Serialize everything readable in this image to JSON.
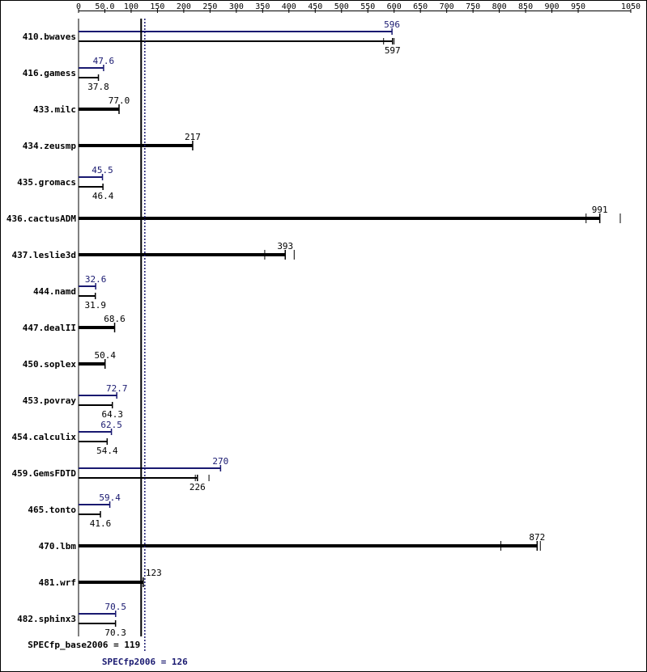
{
  "chart_data": {
    "type": "bar",
    "title": "",
    "xlabel": "",
    "ylabel": "",
    "xlim": [
      0,
      1050
    ],
    "grid": false,
    "ticks": [
      "0",
      "50.0",
      "100",
      "150",
      "200",
      "250",
      "300",
      "350",
      "400",
      "450",
      "500",
      "550",
      "600",
      "650",
      "700",
      "750",
      "800",
      "850",
      "900",
      "950",
      "1050"
    ],
    "tick_values": [
      0,
      50,
      100,
      150,
      200,
      250,
      300,
      350,
      400,
      450,
      500,
      550,
      600,
      650,
      700,
      750,
      800,
      850,
      900,
      950,
      1050
    ],
    "colors": {
      "base": "#000000",
      "peak": "#191970"
    },
    "benchmarks": [
      {
        "name": "410.bwaves",
        "peak": 596,
        "peak_label": "596",
        "base": 597,
        "base_label": "597",
        "base_runs": [
          580,
          597,
          600
        ]
      },
      {
        "name": "416.gamess",
        "peak": 47.6,
        "peak_label": "47.6",
        "base": 37.8,
        "base_label": "37.8"
      },
      {
        "name": "433.milc",
        "peak": null,
        "base": 77.0,
        "base_label": "77.0"
      },
      {
        "name": "434.zeusmp",
        "peak": null,
        "base": 217,
        "base_label": "217"
      },
      {
        "name": "435.gromacs",
        "peak": 45.5,
        "peak_label": "45.5",
        "base": 46.4,
        "base_label": "46.4"
      },
      {
        "name": "436.cactusADM",
        "peak": null,
        "base": 991,
        "base_label": "991",
        "base_runs": [
          965,
          991,
          1030
        ]
      },
      {
        "name": "437.leslie3d",
        "peak": null,
        "base": 393,
        "base_label": "393",
        "base_runs": [
          354,
          393,
          410
        ]
      },
      {
        "name": "444.namd",
        "peak": 32.6,
        "peak_label": "32.6",
        "base": 31.9,
        "base_label": "31.9"
      },
      {
        "name": "447.dealII",
        "peak": null,
        "base": 68.6,
        "base_label": "68.6"
      },
      {
        "name": "450.soplex",
        "peak": null,
        "base": 50.4,
        "base_label": "50.4"
      },
      {
        "name": "453.povray",
        "peak": 72.7,
        "peak_label": "72.7",
        "base": 64.3,
        "base_label": "64.3"
      },
      {
        "name": "454.calculix",
        "peak": 62.5,
        "peak_label": "62.5",
        "base": 54.4,
        "base_label": "54.4"
      },
      {
        "name": "459.GemsFDTD",
        "peak": 270,
        "peak_label": "270",
        "base": 226,
        "base_label": "226",
        "base_runs": [
          222,
          226,
          248
        ]
      },
      {
        "name": "465.tonto",
        "peak": 59.4,
        "peak_label": "59.4",
        "base": 41.6,
        "base_label": "41.6"
      },
      {
        "name": "470.lbm",
        "peak": null,
        "base": 872,
        "base_label": "872",
        "base_runs": [
          803,
          872,
          878
        ]
      },
      {
        "name": "481.wrf",
        "peak": null,
        "base": 123,
        "base_label": "123"
      },
      {
        "name": "482.sphinx3",
        "peak": 70.5,
        "peak_label": "70.5",
        "base": 70.3,
        "base_label": "70.3"
      }
    ],
    "base_summary": {
      "label": "SPECfp_base2006 = 119",
      "value": 119
    },
    "peak_summary": {
      "label": "SPECfp2006 = 126",
      "value": 126
    }
  }
}
